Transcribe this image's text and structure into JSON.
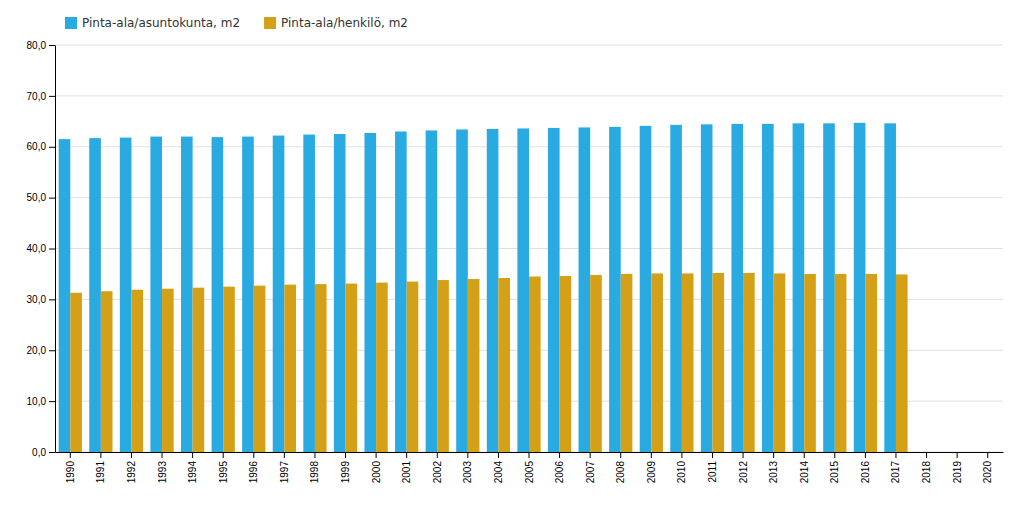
{
  "chart_data": {
    "type": "bar",
    "categories": [
      "1990",
      "1991",
      "1992",
      "1993",
      "1994",
      "1995",
      "1996",
      "1997",
      "1998",
      "1999",
      "2000",
      "2001",
      "2002",
      "2003",
      "2004",
      "2005",
      "2006",
      "2007",
      "2008",
      "2009",
      "2010",
      "2011",
      "2012",
      "2013",
      "2014",
      "2015",
      "2016",
      "2017",
      "2018",
      "2019",
      "2020"
    ],
    "series": [
      {
        "name": "Pinta-ala/asuntokunta, m2",
        "color": "#29ABE2",
        "values": [
          61.5,
          61.7,
          61.8,
          62.0,
          62.0,
          61.9,
          62.0,
          62.2,
          62.4,
          62.5,
          62.7,
          63.0,
          63.2,
          63.4,
          63.5,
          63.6,
          63.7,
          63.8,
          63.9,
          64.1,
          64.3,
          64.4,
          64.5,
          64.5,
          64.6,
          64.6,
          64.7,
          64.6,
          null,
          null,
          null
        ]
      },
      {
        "name": "Pinta-ala/henkilö, m2",
        "color": "#D4A017",
        "values": [
          31.3,
          31.6,
          31.9,
          32.1,
          32.3,
          32.5,
          32.7,
          32.9,
          33.0,
          33.1,
          33.3,
          33.5,
          33.8,
          34.0,
          34.2,
          34.5,
          34.6,
          34.8,
          35.0,
          35.1,
          35.1,
          35.2,
          35.2,
          35.1,
          35.0,
          35.0,
          35.0,
          34.9,
          null,
          null,
          null
        ]
      }
    ],
    "ylim": [
      0,
      80
    ],
    "yticks": [
      {
        "value": 0,
        "label": "0,0"
      },
      {
        "value": 10,
        "label": "10,0"
      },
      {
        "value": 20,
        "label": "20,0"
      },
      {
        "value": 30,
        "label": "30,0"
      },
      {
        "value": 40,
        "label": "40,0"
      },
      {
        "value": 50,
        "label": "50,0"
      },
      {
        "value": 60,
        "label": "60,0"
      },
      {
        "value": 70,
        "label": "70,0"
      },
      {
        "value": 80,
        "label": "80,0"
      }
    ],
    "grid": true,
    "legend": "upper left"
  }
}
